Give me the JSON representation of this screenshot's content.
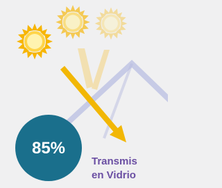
{
  "badge": {
    "text": "85%"
  },
  "caption": {
    "lines": [
      "Transmis",
      "en Vidrio"
    ]
  }
}
